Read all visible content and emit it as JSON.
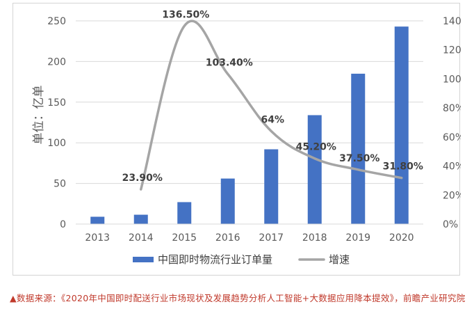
{
  "chart_data": {
    "type": "bar",
    "categories": [
      "2013",
      "2014",
      "2015",
      "2016",
      "2017",
      "2018",
      "2019",
      "2020"
    ],
    "series": [
      {
        "name": "中国即时物流行业订单量",
        "type": "bar",
        "axis": "left",
        "values": [
          9,
          11.5,
          27,
          56,
          92,
          134,
          185,
          243
        ]
      },
      {
        "name": "增速",
        "type": "line",
        "axis": "right",
        "values": [
          null,
          23.9,
          136.5,
          103.4,
          64,
          45.2,
          37.5,
          31.8
        ],
        "labels": [
          null,
          "23.90%",
          "136.50%",
          "103.40%",
          "64%",
          "45.20%",
          "37.50%",
          "31.80%"
        ]
      }
    ],
    "ylabel": "单位：亿单",
    "ylim": [
      0,
      250
    ],
    "yticks": [
      "0",
      "50",
      "100",
      "150",
      "200",
      "250"
    ],
    "y2lim": [
      0,
      140
    ],
    "y2ticks": [
      "0%",
      "20%",
      "40%",
      "60%",
      "80%",
      "100%",
      "120%",
      "140%"
    ],
    "grid": true,
    "legend": "bottom",
    "colors": {
      "bar": "#4472c4",
      "line": "#a5a5a5"
    }
  },
  "source_note": "▲数据来源：《2020年中国即时配送行业市场现状及发展趋势分析人工智能+大数据应用降本提效》，前瞻产业研究院"
}
